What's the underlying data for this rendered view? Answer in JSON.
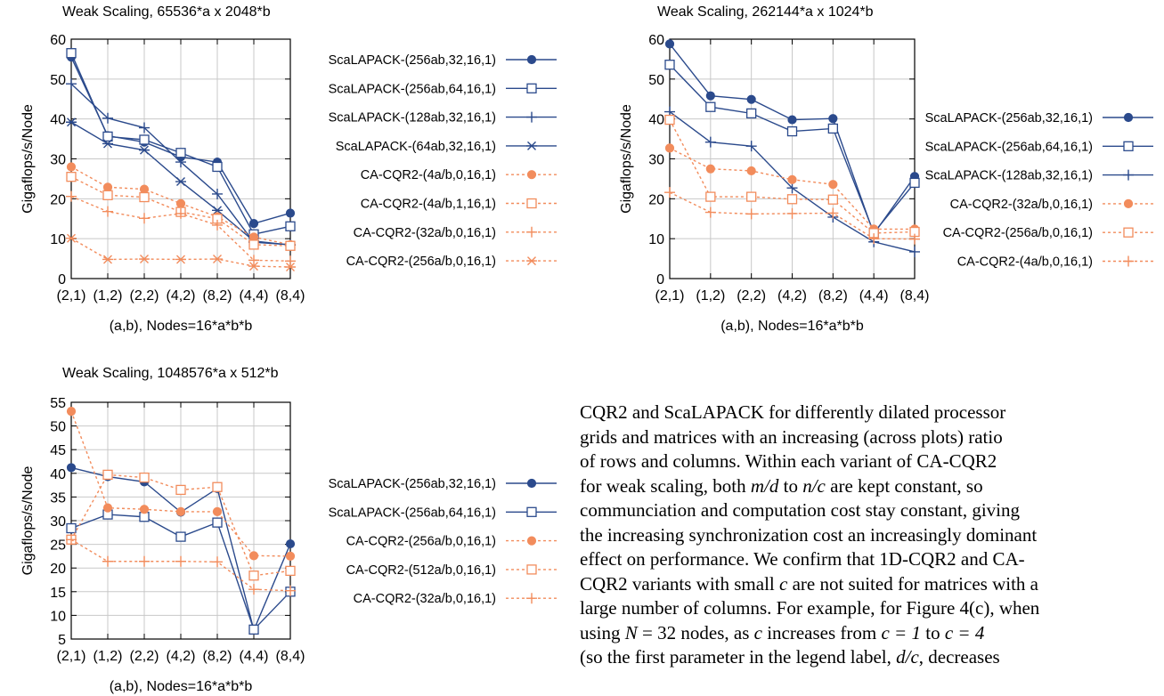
{
  "colors": {
    "blue": "#2b4a8c",
    "orange": "#f28c5c",
    "grid": "#c8c8c8"
  },
  "chart_data": [
    {
      "type": "line",
      "title": "Weak Scaling, 65536*a x 2048*b",
      "xlabel": "(a,b), Nodes=16*a*b*b",
      "ylabel": "Gigaflops/s/Node",
      "categories": [
        "(2,1)",
        "(1,2)",
        "(2,2)",
        "(4,2)",
        "(8,2)",
        "(4,4)",
        "(8,4)"
      ],
      "ylim": [
        0,
        60
      ],
      "yticks": [
        "0",
        "10",
        "20",
        "30",
        "40",
        "50",
        "60"
      ],
      "grid": true,
      "legend": "right",
      "series": [
        {
          "name": "ScaLAPACK-(256ab,32,16,1)",
          "color": "blue",
          "marker": "dot",
          "dashed": false,
          "values": [
            55.5,
            35.8,
            34.2,
            30.5,
            29.2,
            13.8,
            16.4
          ]
        },
        {
          "name": "ScaLAPACK-(256ab,64,16,1)",
          "color": "blue",
          "marker": "square",
          "dashed": false,
          "values": [
            56.5,
            35.6,
            34.8,
            31.5,
            28.0,
            11.1,
            13.1
          ]
        },
        {
          "name": "ScaLAPACK-(128ab,32,16,1)",
          "color": "blue",
          "marker": "plus",
          "dashed": false,
          "values": [
            48.8,
            40.2,
            37.8,
            29.2,
            21.2,
            9.1,
            8.5
          ]
        },
        {
          "name": "ScaLAPACK-(64ab,32,16,1)",
          "color": "blue",
          "marker": "star",
          "dashed": false,
          "values": [
            39.2,
            33.8,
            32.2,
            24.3,
            17.1,
            9.4,
            8.4
          ]
        },
        {
          "name": "CA-CQR2-(4a/b,0,16,1)",
          "color": "orange",
          "marker": "dot",
          "dashed": true,
          "values": [
            28.0,
            22.9,
            22.4,
            18.8,
            15.5,
            10.4,
            8.5
          ]
        },
        {
          "name": "CA-CQR2-(4a/b,1,16,1)",
          "color": "orange",
          "marker": "square",
          "dashed": true,
          "values": [
            25.5,
            20.9,
            20.4,
            16.7,
            15.0,
            8.5,
            8.2
          ]
        },
        {
          "name": "CA-CQR2-(32a/b,0,16,1)",
          "color": "orange",
          "marker": "plus",
          "dashed": true,
          "values": [
            20.6,
            16.8,
            15.1,
            16.3,
            13.4,
            4.6,
            4.4
          ]
        },
        {
          "name": "CA-CQR2-(256a/b,0,16,1)",
          "color": "orange",
          "marker": "star",
          "dashed": true,
          "values": [
            10.1,
            4.8,
            4.9,
            4.8,
            4.9,
            3.1,
            2.9
          ]
        }
      ]
    },
    {
      "type": "line",
      "title": "Weak Scaling, 262144*a x 1024*b",
      "xlabel": "(a,b), Nodes=16*a*b*b",
      "ylabel": "Gigaflops/s/Node",
      "categories": [
        "(2,1)",
        "(1,2)",
        "(2,2)",
        "(4,2)",
        "(8,2)",
        "(4,4)",
        "(8,4)"
      ],
      "ylim": [
        0,
        60
      ],
      "yticks": [
        "0",
        "10",
        "20",
        "30",
        "40",
        "50",
        "60"
      ],
      "grid": true,
      "legend": "right",
      "series": [
        {
          "name": "ScaLAPACK-(256ab,32,16,1)",
          "color": "blue",
          "marker": "dot",
          "dashed": false,
          "values": [
            58.8,
            45.8,
            44.9,
            39.8,
            40.1,
            11.2,
            25.6
          ]
        },
        {
          "name": "ScaLAPACK-(256ab,64,16,1)",
          "color": "blue",
          "marker": "square",
          "dashed": false,
          "values": [
            53.6,
            43.0,
            41.4,
            36.9,
            37.6,
            11.5,
            24.0
          ]
        },
        {
          "name": "ScaLAPACK-(128ab,32,16,1)",
          "color": "blue",
          "marker": "plus",
          "dashed": false,
          "values": [
            41.8,
            34.2,
            33.2,
            22.7,
            15.4,
            9.2,
            6.7
          ]
        },
        {
          "name": "CA-CQR2-(32a/b,0,16,1)",
          "color": "orange",
          "marker": "dot",
          "dashed": true,
          "values": [
            32.7,
            27.5,
            27.0,
            24.8,
            23.6,
            12.4,
            12.4
          ]
        },
        {
          "name": "CA-CQR2-(256a/b,0,16,1)",
          "color": "orange",
          "marker": "square",
          "dashed": true,
          "values": [
            39.8,
            20.5,
            20.5,
            19.9,
            19.8,
            11.4,
            11.7
          ]
        },
        {
          "name": "CA-CQR2-(4a/b,0,16,1)",
          "color": "orange",
          "marker": "plus",
          "dashed": true,
          "values": [
            21.6,
            16.6,
            16.2,
            16.3,
            16.4,
            10.0,
            9.9
          ]
        }
      ]
    },
    {
      "type": "line",
      "title": "Weak Scaling, 1048576*a x 512*b",
      "xlabel": "(a,b), Nodes=16*a*b*b",
      "ylabel": "Gigaflops/s/Node",
      "categories": [
        "(2,1)",
        "(1,2)",
        "(2,2)",
        "(4,2)",
        "(8,2)",
        "(4,4)",
        "(8,4)"
      ],
      "ylim": [
        5,
        55
      ],
      "yticks": [
        "5",
        "10",
        "15",
        "20",
        "25",
        "30",
        "35",
        "40",
        "45",
        "50",
        "55"
      ],
      "grid": true,
      "legend": "right",
      "series": [
        {
          "name": "ScaLAPACK-(256ab,32,16,1)",
          "color": "blue",
          "marker": "dot",
          "dashed": false,
          "values": [
            41.2,
            39.3,
            38.2,
            31.8,
            36.8,
            6.9,
            25.1
          ]
        },
        {
          "name": "ScaLAPACK-(256ab,64,16,1)",
          "color": "blue",
          "marker": "square",
          "dashed": false,
          "values": [
            28.4,
            31.3,
            30.8,
            26.6,
            29.6,
            7.0,
            15.0
          ]
        },
        {
          "name": "CA-CQR2-(256a/b,0,16,1)",
          "color": "orange",
          "marker": "dot",
          "dashed": true,
          "values": [
            53.1,
            32.7,
            32.4,
            31.9,
            31.9,
            22.6,
            22.5
          ]
        },
        {
          "name": "CA-CQR2-(512a/b,0,16,1)",
          "color": "orange",
          "marker": "square",
          "dashed": true,
          "values": [
            26.0,
            39.7,
            39.1,
            36.5,
            37.1,
            18.4,
            19.4
          ]
        },
        {
          "name": "CA-CQR2-(32a/b,0,16,1)",
          "color": "orange",
          "marker": "plus",
          "dashed": true,
          "values": [
            26.0,
            21.4,
            21.4,
            21.4,
            21.3,
            15.5,
            15.2
          ]
        }
      ]
    }
  ],
  "text": {
    "lines": [
      "CQR2 and ScaLAPACK for differently dilated processor",
      "grids and matrices with an increasing (across plots) ratio",
      "of rows and columns. Within each variant of CA-CQR2",
      "for weak scaling, both m/d to n/c are kept constant, so",
      "communciation and computation cost stay constant, giving",
      "the increasing synchronization cost an increasingly dominant",
      "effect on performance. We confirm that 1D-CQR2 and CA-",
      "CQR2 variants with small c are not suited for matrices with a",
      "large number of columns. For example, for Figure 4(c), when",
      "using N = 32 nodes, as c increases from c = 1 to c = 4",
      "(so the first parameter in the legend label, d/c, decreases"
    ]
  }
}
